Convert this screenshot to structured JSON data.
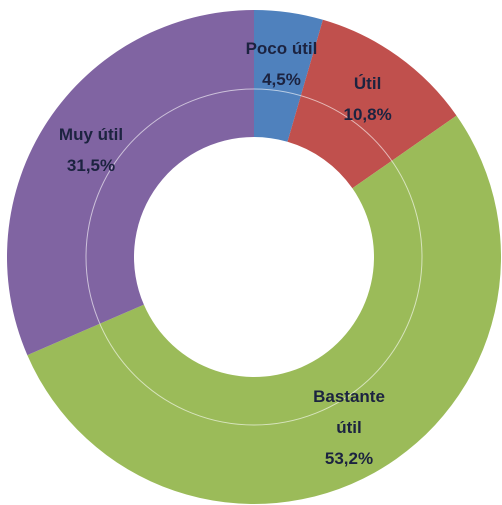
{
  "chart_data": {
    "type": "donut",
    "categories": [
      "Poco útil",
      "Útil",
      "Bastante útil",
      "Muy útil"
    ],
    "values": [
      4.5,
      10.8,
      53.2,
      31.5
    ],
    "value_labels": [
      "4,5%",
      "10,8%",
      "53,2%",
      "31,5%"
    ],
    "colors": [
      "#4f81bd",
      "#c0504d",
      "#9bbb59",
      "#8064a2"
    ]
  }
}
